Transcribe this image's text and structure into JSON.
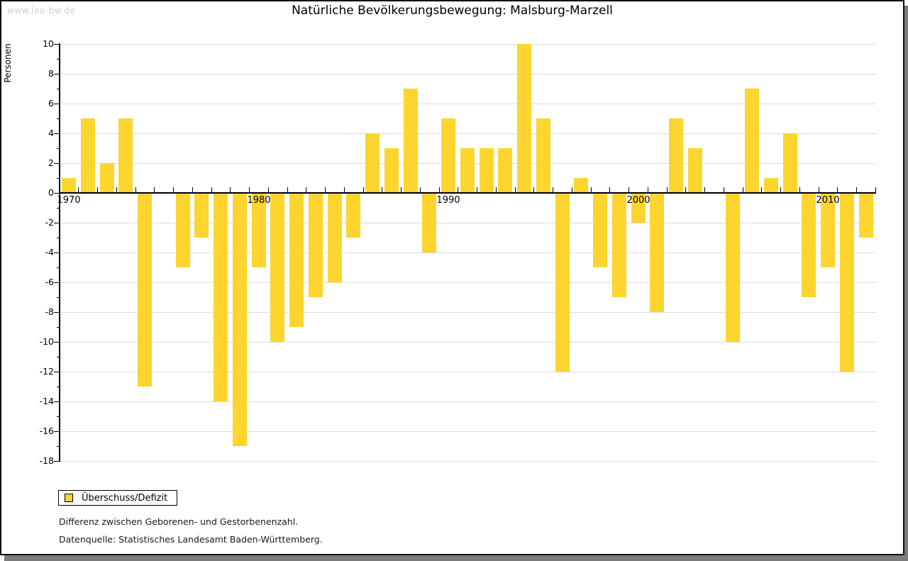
{
  "page": {
    "watermark": "www.leo-bw.de",
    "title": "Natürliche Bevölkerungsbewegung: Malsburg-Marzell"
  },
  "legend": {
    "label": "Überschuss/Defizit"
  },
  "footnotes": [
    "Differenz zwischen Geborenen- und Gestorbenenzahl.",
    "Datenquelle: Statistisches Landesamt Baden-Württemberg."
  ],
  "chart_data": {
    "type": "bar",
    "title": "Natürliche Bevölkerungsbewegung: Malsburg-Marzell",
    "ylabel": "Personen",
    "xlabel": "",
    "x": [
      1970,
      1971,
      1972,
      1973,
      1974,
      1975,
      1976,
      1977,
      1978,
      1979,
      1980,
      1981,
      1982,
      1983,
      1984,
      1985,
      1986,
      1987,
      1988,
      1989,
      1990,
      1991,
      1992,
      1993,
      1994,
      1995,
      1996,
      1997,
      1998,
      1999,
      2000,
      2001,
      2002,
      2003,
      2004,
      2005,
      2006,
      2007,
      2008,
      2009,
      2010,
      2011,
      2012
    ],
    "values": [
      1,
      5,
      2,
      5,
      -13,
      0,
      -5,
      -3,
      -14,
      -17,
      -5,
      -10,
      -9,
      -7,
      -6,
      -3,
      4,
      3,
      7,
      -4,
      5,
      3,
      3,
      3,
      10,
      5,
      -12,
      1,
      -5,
      -7,
      -2,
      -8,
      5,
      3,
      0,
      -10,
      7,
      1,
      4,
      -7,
      -5,
      -12,
      -3
    ],
    "series_name": "Überschuss/Defizit",
    "ylim": [
      -18,
      10
    ],
    "ytick_label_step": 2,
    "ytick_minor_step": 1,
    "xtick_labels": [
      1970,
      1980,
      1990,
      2000,
      2010
    ],
    "grid": true,
    "bar_color": "#FDD52E",
    "legend_position": "bottom-left"
  }
}
